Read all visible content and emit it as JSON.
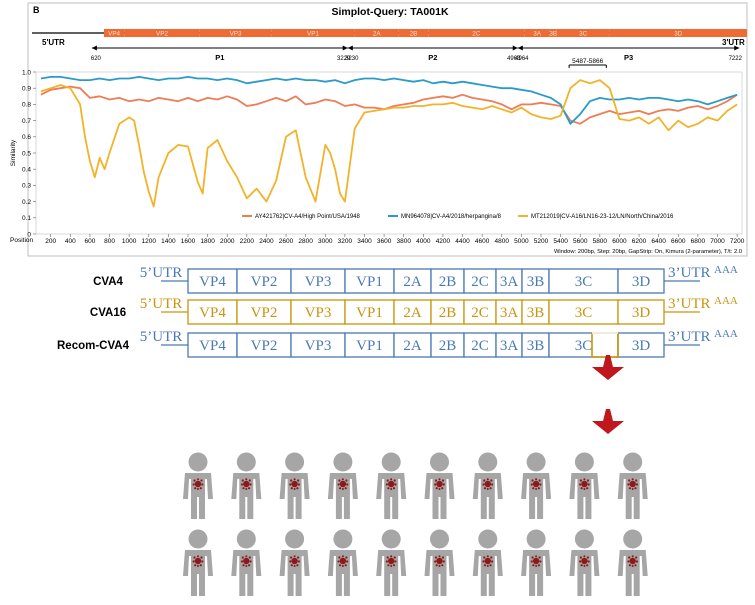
{
  "panel_label": "B",
  "chart_data": {
    "type": "line",
    "title": "Simplot-Query: TA001K",
    "xlabel": "Position",
    "ylabel": "Similarity",
    "xlim": [
      50,
      7250
    ],
    "ylim": [
      0,
      1.0
    ],
    "x_ticks": [
      200,
      400,
      600,
      800,
      1000,
      1200,
      1400,
      1600,
      1800,
      2000,
      2200,
      2400,
      2600,
      2800,
      3000,
      3200,
      3400,
      3600,
      3800,
      4000,
      4200,
      4400,
      4600,
      4800,
      5000,
      5200,
      5400,
      5600,
      5800,
      6000,
      6200,
      6400,
      6600,
      6800,
      7000,
      7200
    ],
    "y_ticks": [
      "0",
      "0.1",
      "0.2",
      "0.3",
      "0.4",
      "0.5",
      "0.6",
      "0.7",
      "0.8",
      "0.9",
      "1.0"
    ],
    "series": [
      {
        "name": "AY421762|CV-A4/High Point/USA/1948",
        "color": "#ed7d55",
        "x": [
          100,
          200,
          300,
          400,
          500,
          600,
          700,
          800,
          900,
          1000,
          1100,
          1200,
          1300,
          1400,
          1500,
          1600,
          1700,
          1800,
          1900,
          2000,
          2100,
          2200,
          2300,
          2400,
          2500,
          2600,
          2700,
          2800,
          2900,
          3000,
          3100,
          3200,
          3300,
          3400,
          3500,
          3600,
          3700,
          3800,
          3900,
          4000,
          4100,
          4200,
          4300,
          4400,
          4500,
          4600,
          4700,
          4800,
          4900,
          5000,
          5100,
          5200,
          5300,
          5400,
          5500,
          5600,
          5700,
          5800,
          5900,
          6000,
          6100,
          6200,
          6300,
          6400,
          6500,
          6600,
          6700,
          6800,
          6900,
          7000,
          7100,
          7200
        ],
        "values": [
          0.86,
          0.89,
          0.9,
          0.91,
          0.9,
          0.84,
          0.85,
          0.83,
          0.84,
          0.82,
          0.83,
          0.82,
          0.84,
          0.83,
          0.82,
          0.84,
          0.82,
          0.84,
          0.83,
          0.85,
          0.83,
          0.79,
          0.8,
          0.82,
          0.84,
          0.82,
          0.85,
          0.8,
          0.81,
          0.83,
          0.82,
          0.79,
          0.8,
          0.78,
          0.78,
          0.77,
          0.79,
          0.8,
          0.81,
          0.83,
          0.84,
          0.85,
          0.84,
          0.86,
          0.84,
          0.83,
          0.82,
          0.8,
          0.77,
          0.8,
          0.8,
          0.81,
          0.8,
          0.79,
          0.7,
          0.68,
          0.72,
          0.74,
          0.76,
          0.74,
          0.75,
          0.76,
          0.74,
          0.76,
          0.77,
          0.76,
          0.78,
          0.79,
          0.77,
          0.79,
          0.82,
          0.86
        ]
      },
      {
        "name": "MN964078|CV-A4/2018/herpangina/8",
        "color": "#2a9bc7",
        "x": [
          100,
          200,
          300,
          400,
          500,
          600,
          700,
          800,
          900,
          1000,
          1100,
          1200,
          1300,
          1400,
          1500,
          1600,
          1700,
          1800,
          1900,
          2000,
          2100,
          2200,
          2300,
          2400,
          2500,
          2600,
          2700,
          2800,
          2900,
          3000,
          3100,
          3200,
          3300,
          3400,
          3500,
          3600,
          3700,
          3800,
          3900,
          4000,
          4100,
          4200,
          4300,
          4400,
          4500,
          4600,
          4700,
          4800,
          4900,
          5000,
          5100,
          5200,
          5300,
          5400,
          5500,
          5600,
          5700,
          5800,
          5900,
          6000,
          6100,
          6200,
          6300,
          6400,
          6500,
          6600,
          6700,
          6800,
          6900,
          7000,
          7100,
          7200
        ],
        "values": [
          0.96,
          0.97,
          0.97,
          0.96,
          0.95,
          0.95,
          0.96,
          0.95,
          0.96,
          0.96,
          0.97,
          0.96,
          0.95,
          0.96,
          0.96,
          0.97,
          0.96,
          0.96,
          0.95,
          0.96,
          0.95,
          0.93,
          0.94,
          0.95,
          0.96,
          0.95,
          0.96,
          0.95,
          0.95,
          0.94,
          0.95,
          0.93,
          0.95,
          0.96,
          0.96,
          0.95,
          0.96,
          0.95,
          0.94,
          0.95,
          0.93,
          0.94,
          0.93,
          0.94,
          0.93,
          0.92,
          0.91,
          0.9,
          0.9,
          0.89,
          0.88,
          0.86,
          0.84,
          0.8,
          0.68,
          0.74,
          0.82,
          0.84,
          0.83,
          0.83,
          0.84,
          0.83,
          0.84,
          0.84,
          0.83,
          0.82,
          0.83,
          0.82,
          0.8,
          0.82,
          0.84,
          0.86
        ]
      },
      {
        "name": "MT212019|CV-A16/LN16-23-12/LN/North/China/2016",
        "color": "#f2b32a",
        "x": [
          100,
          200,
          300,
          400,
          500,
          550,
          600,
          650,
          700,
          750,
          800,
          900,
          1000,
          1050,
          1100,
          1150,
          1200,
          1250,
          1300,
          1400,
          1500,
          1600,
          1700,
          1750,
          1800,
          1900,
          2000,
          2100,
          2200,
          2300,
          2400,
          2500,
          2600,
          2700,
          2800,
          2900,
          3000,
          3050,
          3100,
          3150,
          3200,
          3300,
          3400,
          3500,
          3600,
          3700,
          3800,
          3900,
          4000,
          4100,
          4200,
          4300,
          4400,
          4500,
          4600,
          4700,
          4800,
          4900,
          5000,
          5100,
          5200,
          5300,
          5400,
          5500,
          5600,
          5700,
          5800,
          5900,
          6000,
          6100,
          6200,
          6300,
          6400,
          6500,
          6600,
          6700,
          6800,
          6900,
          7000,
          7100,
          7200
        ],
        "values": [
          0.88,
          0.9,
          0.92,
          0.9,
          0.8,
          0.6,
          0.45,
          0.35,
          0.47,
          0.4,
          0.5,
          0.68,
          0.72,
          0.7,
          0.55,
          0.38,
          0.26,
          0.17,
          0.35,
          0.5,
          0.55,
          0.54,
          0.32,
          0.25,
          0.53,
          0.58,
          0.45,
          0.35,
          0.22,
          0.28,
          0.2,
          0.33,
          0.6,
          0.64,
          0.35,
          0.2,
          0.55,
          0.5,
          0.4,
          0.25,
          0.2,
          0.65,
          0.75,
          0.76,
          0.77,
          0.78,
          0.78,
          0.79,
          0.79,
          0.8,
          0.8,
          0.81,
          0.79,
          0.78,
          0.77,
          0.79,
          0.77,
          0.75,
          0.78,
          0.74,
          0.72,
          0.71,
          0.73,
          0.9,
          0.95,
          0.93,
          0.95,
          0.9,
          0.71,
          0.7,
          0.72,
          0.68,
          0.72,
          0.64,
          0.7,
          0.66,
          0.68,
          0.72,
          0.7,
          0.76,
          0.8
        ]
      }
    ],
    "annotations": [
      {
        "label": "5487-5866",
        "x_start": 5487,
        "x_end": 5866
      }
    ],
    "footer_note": "Window: 200bp, Step: 20bp, GapStrip: On, Kimura (2-parameter), T/t: 2.0"
  },
  "genome_map": {
    "utr5_label": "5'UTR",
    "utr3_label": "3'UTR",
    "genes": [
      {
        "label": "VP4",
        "start": 743,
        "end": 950
      },
      {
        "label": "VP2",
        "start": 950,
        "end": 1720
      },
      {
        "label": "VP3",
        "start": 1720,
        "end": 2450
      },
      {
        "label": "VP1",
        "start": 2450,
        "end": 3300
      },
      {
        "label": "2A",
        "start": 3300,
        "end": 3750
      },
      {
        "label": "2B",
        "start": 3750,
        "end": 4050
      },
      {
        "label": "2C",
        "start": 4050,
        "end": 5030
      },
      {
        "label": "3A",
        "start": 5030,
        "end": 5290
      },
      {
        "label": "3B",
        "start": 5290,
        "end": 5360
      },
      {
        "label": "3C",
        "start": 5360,
        "end": 5900
      },
      {
        "label": "3D",
        "start": 5900,
        "end": 7300
      }
    ],
    "regions": [
      {
        "label": "P1",
        "start": 620,
        "end": 3229,
        "start_label": "620",
        "end_label": "3229"
      },
      {
        "label": "P2",
        "start": 3230,
        "end": 4963,
        "start_label": "3230",
        "end_label": "4963"
      },
      {
        "label": "P3",
        "start": 4964,
        "end": 7222,
        "start_label": "4964",
        "end_label": "7222"
      }
    ]
  },
  "legend_entries": [
    "AY421762|CV-A4/High Point/USA/1948",
    "MN964078|CV-A4/2018/herpangina/8",
    "MT212019|CV-A16/LN16-23-12/LN/North/China/2016"
  ],
  "schematic": {
    "genome_rows": [
      {
        "name": "CVA4",
        "color": "#4a7ab5",
        "cells": [
          "VP4",
          "VP2",
          "VP3",
          "VP1",
          "2A",
          "2B",
          "2C",
          "3A",
          "3B",
          "3C",
          "3D"
        ]
      },
      {
        "name": "CVA16",
        "color": "#c9940e",
        "cells": [
          "VP4",
          "VP2",
          "VP3",
          "VP1",
          "2A",
          "2B",
          "2C",
          "3A",
          "3B",
          "3C",
          "3D"
        ]
      },
      {
        "name": "Recom-CVA4",
        "color": "#4a7ab5",
        "cells": [
          "VP4",
          "VP2",
          "VP3",
          "VP1",
          "2A",
          "2B",
          "2C",
          "3A",
          "3B",
          "3C",
          "3D"
        ],
        "insert_color": "#c9940e"
      }
    ],
    "utr5": "5’UTR",
    "utr3": "3’UTR",
    "polyA": "AAA",
    "arrow_color": "#c0161d",
    "people": {
      "rows": 2,
      "per_row": 10,
      "body_color": "#a6a6a6",
      "virus_color": "#8b1a1a"
    }
  }
}
